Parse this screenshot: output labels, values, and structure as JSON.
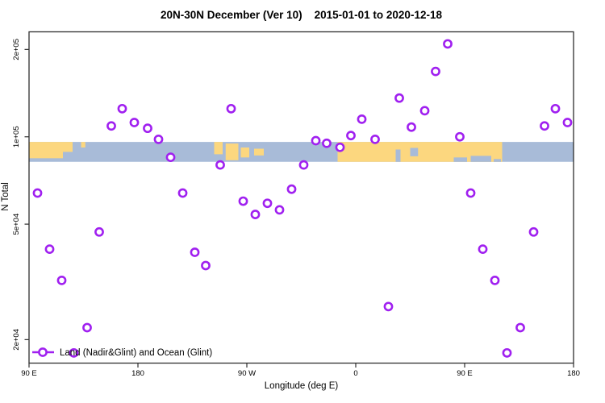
{
  "chart_data": {
    "type": "scatter",
    "title": "20N-30N December (Ver 10)    2015-01-01 to 2020-12-18",
    "xlabel": "Longitude (deg E)",
    "ylabel": "N Total",
    "x_axis": {
      "lim": [
        90,
        540
      ],
      "ticks": [
        {
          "v": 90,
          "label": "90 E"
        },
        {
          "v": 180,
          "label": "180"
        },
        {
          "v": 270,
          "label": "90 W"
        },
        {
          "v": 360,
          "label": "0"
        },
        {
          "v": 450,
          "label": "90 E"
        },
        {
          "v": 540,
          "label": "180"
        }
      ]
    },
    "y_axis": {
      "scale": "log",
      "lim": [
        16600,
        230000
      ],
      "ticks": [
        {
          "v": 20000,
          "label": "2e+04"
        },
        {
          "v": 50000,
          "label": "5e+04"
        },
        {
          "v": 100000,
          "label": "1e+05"
        },
        {
          "v": 200000,
          "label": "2e+05"
        }
      ]
    },
    "grid": "off",
    "legend": {
      "label": "Land (Nadir&Glint) and Ocean (Glint)",
      "position": "bottom-left",
      "marker": "open-circle-on-line"
    },
    "series": [
      {
        "name": "Land (Nadir&Glint) and Ocean (Glint)",
        "color": "#A020F0",
        "marker": "open-circle",
        "points": [
          [
            97,
            64000
          ],
          [
            107,
            41000
          ],
          [
            117,
            32000
          ],
          [
            127,
            18000
          ],
          [
            138,
            22000
          ],
          [
            148,
            47000
          ],
          [
            158,
            109000
          ],
          [
            167,
            125000
          ],
          [
            177,
            112000
          ],
          [
            188,
            107000
          ],
          [
            197,
            98000
          ],
          [
            207,
            85000
          ],
          [
            217,
            64000
          ],
          [
            227,
            40000
          ],
          [
            236,
            36000
          ],
          [
            248,
            80000
          ],
          [
            257,
            125000
          ],
          [
            267,
            60000
          ],
          [
            277,
            54000
          ],
          [
            287,
            59000
          ],
          [
            297,
            56000
          ],
          [
            307,
            66000
          ],
          [
            317,
            80000
          ],
          [
            327,
            97000
          ],
          [
            336,
            95000
          ],
          [
            347,
            92000
          ],
          [
            356,
            101000
          ],
          [
            365,
            115000
          ],
          [
            376,
            98000
          ],
          [
            387,
            26000
          ],
          [
            396,
            136000
          ],
          [
            406,
            108000
          ],
          [
            417,
            123000
          ],
          [
            426,
            168000
          ],
          [
            436,
            209000
          ],
          [
            446,
            100000
          ],
          [
            455,
            64000
          ],
          [
            465,
            41000
          ],
          [
            475,
            32000
          ],
          [
            485,
            18000
          ],
          [
            496,
            22000
          ],
          [
            507,
            47000
          ],
          [
            516,
            109000
          ],
          [
            525,
            125000
          ],
          [
            535,
            112000
          ]
        ]
      }
    ],
    "map_band": {
      "description": "land/ocean strip for 20N-30N latitude band",
      "y_top": 96000,
      "y_bottom": 82000,
      "ocean_color": "#A8BBD8",
      "land_color": "#FCD77F",
      "land_segments": [
        {
          "from": 90,
          "to": 118,
          "top": 0,
          "bottom": 0.82
        },
        {
          "from": 118,
          "to": 126,
          "top": 0,
          "bottom": 0.5
        },
        {
          "from": 133,
          "to": 136.5,
          "top": 0,
          "bottom": 0.28
        },
        {
          "from": 243,
          "to": 250,
          "top": 0,
          "bottom": 0.62
        },
        {
          "from": 252.5,
          "to": 263,
          "top": 0.08,
          "bottom": 0.92
        },
        {
          "from": 265,
          "to": 272,
          "top": 0.28,
          "bottom": 0.78
        },
        {
          "from": 276,
          "to": 284,
          "top": 0.34,
          "bottom": 0.68
        },
        {
          "from": 345,
          "to": 481,
          "top": 0,
          "bottom": 1
        }
      ],
      "ocean_patches": [
        {
          "from": 393,
          "to": 397,
          "top": 0.38,
          "bottom": 1
        },
        {
          "from": 405,
          "to": 411.5,
          "top": 0.3,
          "bottom": 0.72
        },
        {
          "from": 441,
          "to": 452,
          "top": 0.78,
          "bottom": 1
        },
        {
          "from": 455,
          "to": 472,
          "top": 0.7,
          "bottom": 1
        },
        {
          "from": 474,
          "to": 480,
          "top": 0.86,
          "bottom": 1
        }
      ]
    },
    "colors": {
      "points": "#A020F0",
      "land": "#FCD77F",
      "ocean": "#A8BBD8",
      "axis": "#2E2E2E",
      "text": "#000000"
    }
  }
}
